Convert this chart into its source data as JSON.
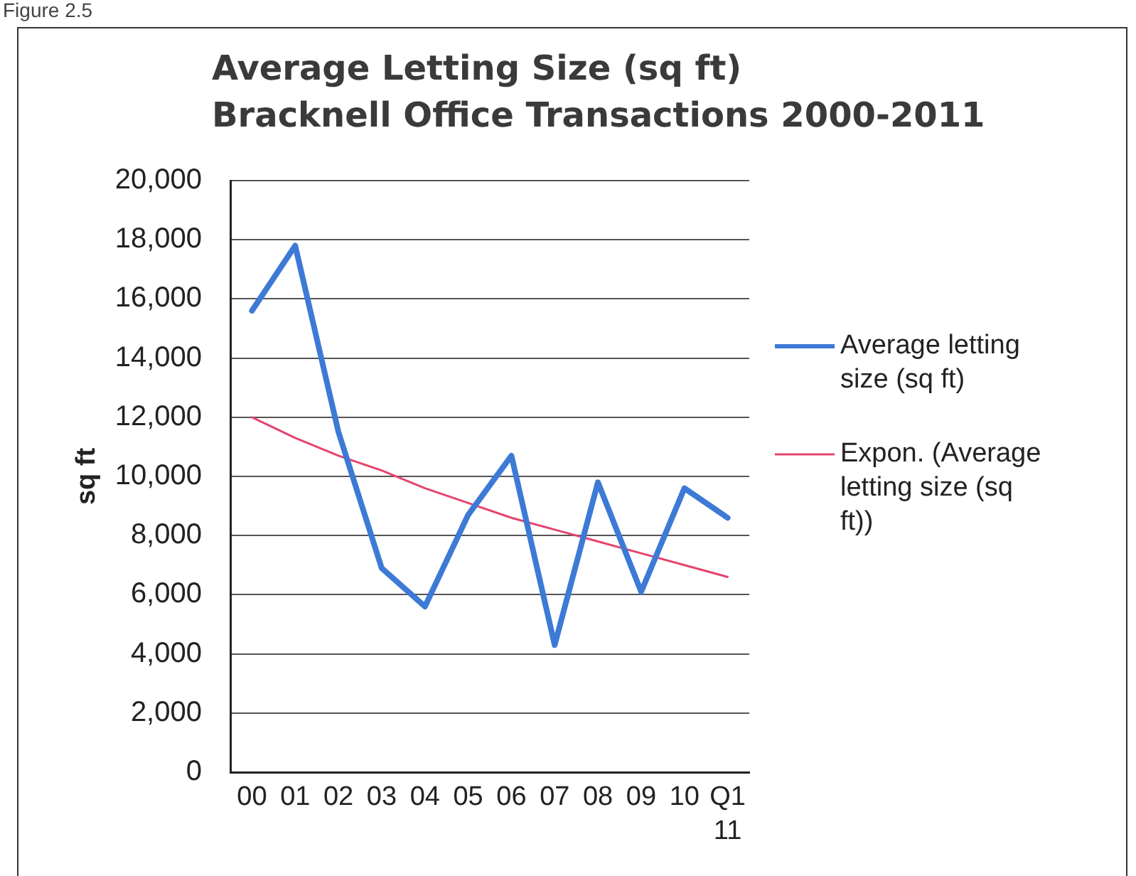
{
  "chart_data": {
    "type": "line",
    "title": "Average Letting Size (sq ft)\nBracknell Office Transactions 2000-2011",
    "ylabel": "sq ft",
    "annotations": [
      "Figure 2.5"
    ],
    "categories": [
      "00",
      "01",
      "02",
      "03",
      "04",
      "05",
      "06",
      "07",
      "08",
      "09",
      "10",
      "Q1 11"
    ],
    "series": [
      {
        "name": "Average letting size (sq ft)",
        "color": "#3d7ad6",
        "values": [
          15600,
          17800,
          11500,
          6900,
          5600,
          8700,
          10700,
          4300,
          9800,
          6100,
          9600,
          8600
        ]
      },
      {
        "name": "Expon. (Average letting size (sq ft))",
        "type": "line",
        "color": "#e5446d",
        "values": [
          12000,
          11300,
          10700,
          10200,
          9600,
          9100,
          8600,
          8200,
          7800,
          7400,
          7000,
          6600
        ]
      }
    ],
    "ylim": [
      0,
      20000
    ],
    "yticks": [
      {
        "value": 0,
        "label": "0"
      },
      {
        "value": 2000,
        "label": "2,000"
      },
      {
        "value": 4000,
        "label": "4,000"
      },
      {
        "value": 6000,
        "label": "6,000"
      },
      {
        "value": 8000,
        "label": "8,000"
      },
      {
        "value": 10000,
        "label": "10,000"
      },
      {
        "value": 12000,
        "label": "12,000"
      },
      {
        "value": 14000,
        "label": "14,000"
      },
      {
        "value": 16000,
        "label": "16,000"
      },
      {
        "value": 18000,
        "label": "18,000"
      },
      {
        "value": 20000,
        "label": "20,000"
      }
    ],
    "grid": "y",
    "legend": "right",
    "marker": "none",
    "line_style": "solid"
  }
}
